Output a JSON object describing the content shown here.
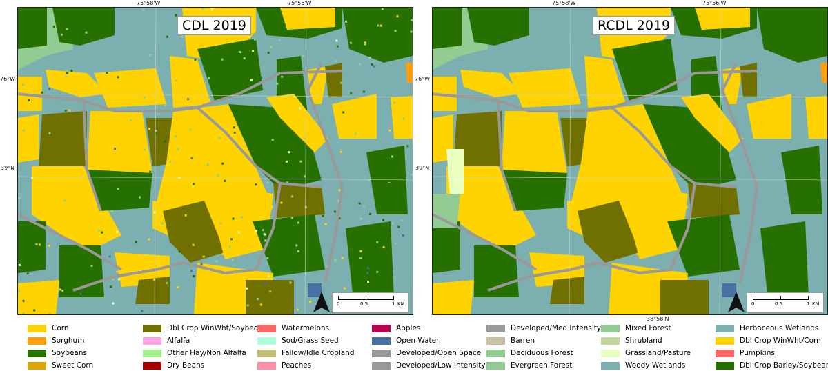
{
  "panels": [
    {
      "title": "CDL 2019",
      "variant": "cdl"
    },
    {
      "title": "RCDL 2019",
      "variant": "rcdl"
    }
  ],
  "coordinates": {
    "top_left_lon": "75°58'W",
    "top_right_lon": "75°56'W",
    "lat_upper": "76°W",
    "lat_lower": "39°N",
    "bottom_lat": "38°58'N"
  },
  "scalebar": {
    "labels": [
      "0",
      "0.5",
      "1"
    ],
    "unit": "KM"
  },
  "legend": [
    {
      "label": "Corn",
      "color": "#ffd300"
    },
    {
      "label": "Sorghum",
      "color": "#ff9e0a"
    },
    {
      "label": "Soybeans",
      "color": "#267000"
    },
    {
      "label": "Sweet Corn",
      "color": "#dda50a"
    },
    {
      "label": "Dbl Crop WinWht/Soybeans",
      "color": "#707000"
    },
    {
      "label": "Alfalfa",
      "color": "#ffa5e2"
    },
    {
      "label": "Other Hay/Non Alfalfa",
      "color": "#a5f28c"
    },
    {
      "label": "Dry Beans",
      "color": "#a80000"
    },
    {
      "label": "Watermelons",
      "color": "#ff6666"
    },
    {
      "label": "Sod/Grass Seed",
      "color": "#afffdd"
    },
    {
      "label": "Fallow/Idle Cropland",
      "color": "#bfbf77"
    },
    {
      "label": "Peaches",
      "color": "#ff8eaa"
    },
    {
      "label": "Apples",
      "color": "#ba004f"
    },
    {
      "label": "Open Water",
      "color": "#4970a3"
    },
    {
      "label": "Developed/Open Space",
      "color": "#999999"
    },
    {
      "label": "Developed/Low Intensity",
      "color": "#999999"
    },
    {
      "label": "Developed/Med Intensity",
      "color": "#999999"
    },
    {
      "label": "Barren",
      "color": "#ccbfa3"
    },
    {
      "label": "Deciduous Forest",
      "color": "#93cc93"
    },
    {
      "label": "Evergreen Forest",
      "color": "#93cc93"
    },
    {
      "label": "Mixed Forest",
      "color": "#93cc93"
    },
    {
      "label": "Shrubland",
      "color": "#c6d69e"
    },
    {
      "label": "Grassland/Pasture",
      "color": "#e8ffbf"
    },
    {
      "label": "Woody Wetlands",
      "color": "#7cafaf"
    },
    {
      "label": "Herbaceous Wetlands",
      "color": "#7cafaf"
    },
    {
      "label": "Dbl Crop WinWht/Corn",
      "color": "#ffd300"
    },
    {
      "label": "Pumpkins",
      "color": "#ff6666"
    },
    {
      "label": "Dbl Crop Barley/Soybeans",
      "color": "#267000"
    }
  ]
}
